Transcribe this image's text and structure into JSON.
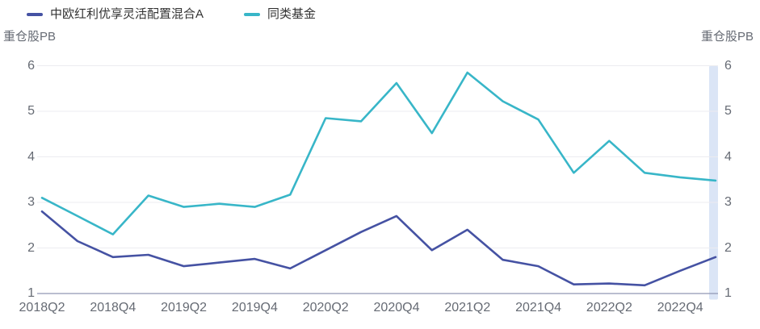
{
  "legend": {
    "fund_label": "中欧红利优享灵活配置混合A",
    "peers_label": "同类基金"
  },
  "axis": {
    "left_title": "重仓股PB",
    "right_title": "重仓股PB"
  },
  "colors": {
    "fund_line": "#4552a3",
    "peers_line": "#38b6c8",
    "grid": "#ececf0",
    "axis_line": "#9098b4",
    "highlight_band": "#dbe5f6",
    "tick_text": "#666b74",
    "legend_text": "#333333"
  },
  "chart_data": {
    "type": "line",
    "title": "",
    "xlabel": "",
    "ylabel": "重仓股PB",
    "ylim": [
      1,
      6
    ],
    "grid": true,
    "legend_position": "top-left",
    "highlight_band": "right-edge-latest-period",
    "categories": [
      "2018Q2",
      "2018Q3",
      "2018Q4",
      "2019Q1",
      "2019Q2",
      "2019Q3",
      "2019Q4",
      "2020Q1",
      "2020Q2",
      "2020Q3",
      "2020Q4",
      "2021Q1",
      "2021Q2",
      "2021Q3",
      "2021Q4",
      "2022Q1",
      "2022Q2",
      "2022Q3",
      "2022Q4",
      "2023Q1"
    ],
    "x_tick_labels": [
      "2018Q2",
      "2018Q4",
      "2019Q2",
      "2019Q4",
      "2020Q2",
      "2020Q4",
      "2021Q2",
      "2021Q4",
      "2022Q2",
      "2022Q4"
    ],
    "y_ticks": [
      6,
      5,
      4,
      3,
      2,
      1
    ],
    "series": [
      {
        "name": "中欧红利优享灵活配置混合A",
        "color": "#4552a3",
        "values": [
          2.8,
          2.15,
          1.8,
          1.85,
          1.6,
          1.68,
          1.76,
          1.55,
          1.95,
          2.35,
          2.7,
          1.95,
          2.4,
          1.74,
          1.6,
          1.2,
          1.22,
          1.18,
          1.5,
          1.8
        ]
      },
      {
        "name": "同类基金",
        "color": "#38b6c8",
        "values": [
          3.1,
          2.7,
          2.3,
          3.15,
          2.9,
          2.97,
          2.9,
          3.17,
          4.85,
          4.78,
          5.62,
          4.52,
          5.85,
          5.22,
          4.82,
          3.65,
          4.35,
          3.65,
          3.55,
          3.48
        ]
      }
    ]
  }
}
